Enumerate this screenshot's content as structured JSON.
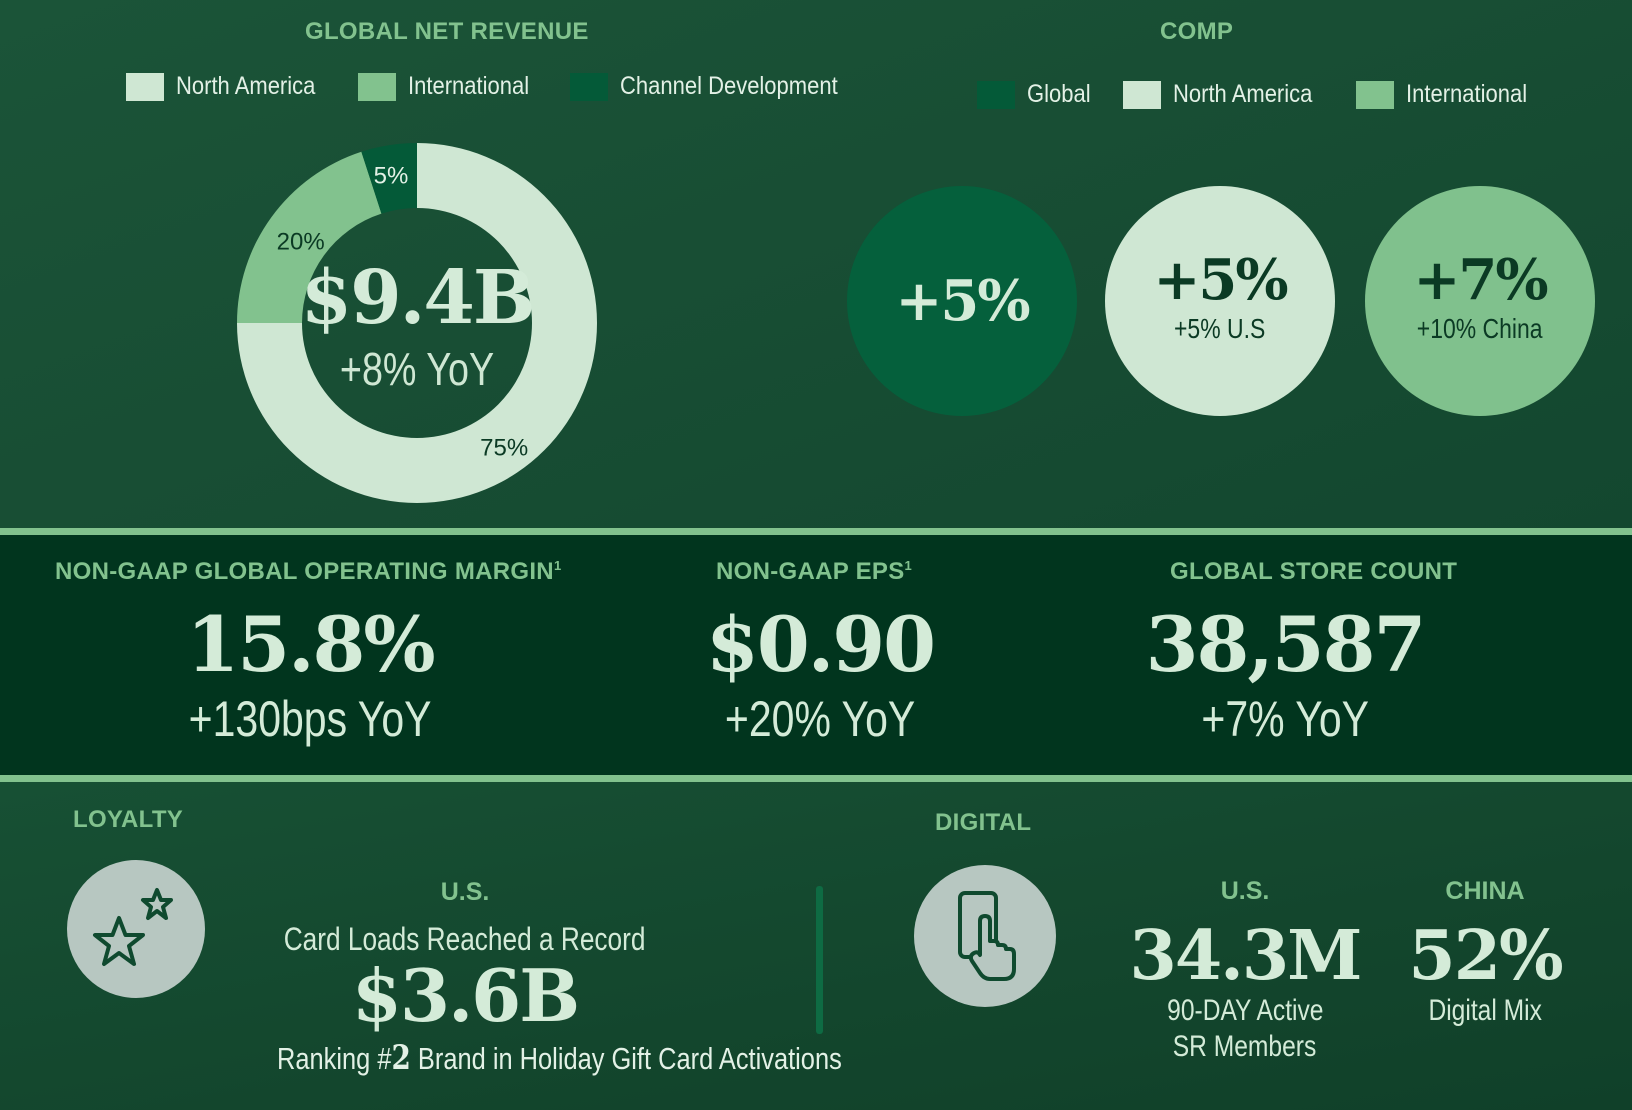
{
  "revenue": {
    "title": "GLOBAL NET REVENUE",
    "center_value": "$9.4B",
    "center_sub": "+8% YoY"
  },
  "comp": {
    "title": "COMP",
    "legend": [
      "Global",
      "North America",
      "International"
    ],
    "circles": [
      {
        "value": "+5%",
        "sub": "",
        "color": "#05603c",
        "text_color": "#d4ebd8"
      },
      {
        "value": "+5%",
        "sub": "+5% U.S",
        "color": "#cfe7d3",
        "text_color": "#0b3a24"
      },
      {
        "value": "+7%",
        "sub": "+10% China",
        "color": "#80c18d",
        "text_color": "#0b3a24"
      }
    ]
  },
  "metrics": [
    {
      "title": "NON-GAAP GLOBAL OPERATING MARGIN",
      "sup": "1",
      "value": "15.8%",
      "change": "+130bps YoY"
    },
    {
      "title": "NON-GAAP EPS",
      "sup": "1",
      "value": "$0.90",
      "change": "+20% YoY"
    },
    {
      "title": "GLOBAL STORE COUNT",
      "sup": "",
      "value": "38,587",
      "change": "+7% YoY"
    }
  ],
  "loyalty": {
    "title": "LOYALTY",
    "icon": "stars-icon",
    "region": "U.S.",
    "line1": "Card Loads Reached a Record",
    "value": "$3.6B",
    "line2_pre": "Ranking #",
    "line2_num": "2",
    "line2_post": " Brand in Holiday Gift Card Activations"
  },
  "digital": {
    "title": "DIGITAL",
    "icon": "phone-tap-icon",
    "us": {
      "region": "U.S.",
      "value": "34.3M",
      "line1": "90-DAY Active",
      "line2": "SR Members"
    },
    "china": {
      "region": "CHINA",
      "value": "52%",
      "line1": "Digital Mix"
    }
  },
  "colors": {
    "north_america": "#cfe7d3",
    "international": "#82c28e",
    "channel_development": "#045a38",
    "global": "#045a38"
  },
  "chart_data": {
    "type": "pie",
    "title": "GLOBAL NET REVENUE",
    "categories": [
      "North America",
      "International",
      "Channel Development"
    ],
    "values": [
      75,
      20,
      5
    ],
    "labels": [
      "75%",
      "20%",
      "5%"
    ],
    "colors": [
      "#cfe7d3",
      "#82c28e",
      "#045a38"
    ],
    "legend_position": "top"
  }
}
